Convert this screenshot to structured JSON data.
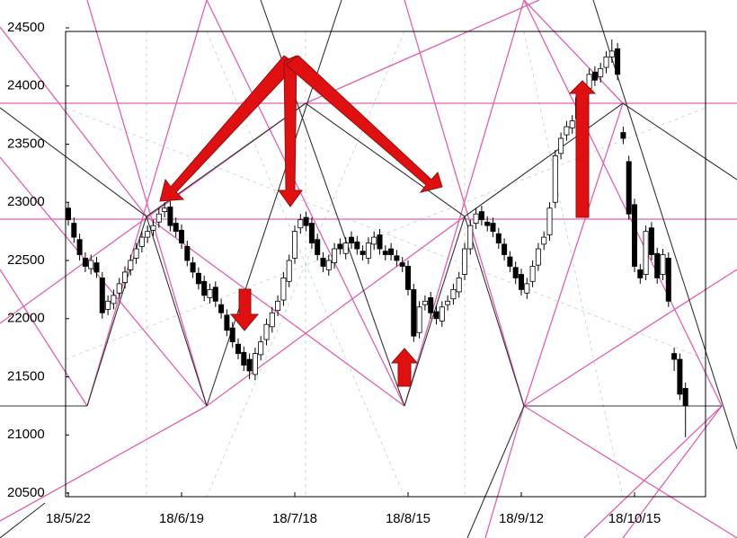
{
  "chart_data": {
    "type": "candlestick",
    "categories": [
      "18/5/22",
      null,
      null,
      null,
      null,
      null,
      null,
      null,
      null,
      null,
      null,
      null,
      null,
      null,
      null,
      null,
      null,
      null,
      null,
      null,
      "18/6/19",
      null,
      null,
      null,
      null,
      null,
      null,
      null,
      null,
      null,
      null,
      null,
      null,
      null,
      null,
      null,
      null,
      null,
      null,
      null,
      "18/7/18",
      null,
      null,
      null,
      null,
      null,
      null,
      null,
      null,
      null,
      null,
      null,
      null,
      null,
      null,
      null,
      null,
      null,
      null,
      null,
      "18/8/15",
      null,
      null,
      null,
      null,
      null,
      null,
      null,
      null,
      null,
      null,
      null,
      null,
      null,
      null,
      null,
      null,
      null,
      null,
      null,
      "18/9/12",
      null,
      null,
      null,
      null,
      null,
      null,
      null,
      null,
      null,
      null,
      null,
      null,
      null,
      null,
      null,
      null,
      null,
      null,
      null,
      "18/10/15",
      null,
      null,
      null,
      null,
      null,
      null,
      null,
      null,
      null
    ],
    "open": [
      22950,
      22820,
      22680,
      22520,
      22430,
      22480,
      22350,
      22080,
      22130,
      22220,
      22310,
      22420,
      22520,
      22620,
      22700,
      22760,
      22830,
      22920,
      22960,
      22820,
      22760,
      22620,
      22480,
      22390,
      22320,
      22180,
      22270,
      22120,
      22030,
      21920,
      21780,
      21710,
      21650,
      21520,
      21690,
      21820,
      21930,
      22070,
      22160,
      22320,
      22520,
      22780,
      22870,
      22820,
      22680,
      22520,
      22420,
      22480,
      22640,
      22560,
      22700,
      22660,
      22580,
      22520,
      22640,
      22720,
      22580,
      22600,
      22540,
      22480,
      22450,
      22250,
      21880,
      22120,
      22180,
      22060,
      21980,
      22120,
      22170,
      22230,
      22380,
      22600,
      22820,
      22920,
      22830,
      22820,
      22730,
      22640,
      22530,
      22440,
      22380,
      22220,
      22320,
      22460,
      22640,
      22720,
      23000,
      23420,
      23580,
      23640,
      23720,
      23920,
      23980,
      24120,
      24080,
      24160,
      24250,
      24320,
      23600,
      23350,
      22980,
      22420,
      22380,
      22780,
      22560,
      22380,
      22520,
      21700,
      21650,
      21400
    ],
    "high": [
      23000,
      22870,
      22730,
      22570,
      22550,
      22530,
      22400,
      22200,
      22250,
      22350,
      22450,
      22550,
      22650,
      22750,
      22800,
      22850,
      22950,
      23000,
      23010,
      22870,
      22810,
      22670,
      22530,
      22440,
      22370,
      22300,
      22320,
      22170,
      22080,
      21970,
      21830,
      21760,
      21700,
      21750,
      21850,
      22000,
      22100,
      22200,
      22400,
      22550,
      22800,
      22900,
      22920,
      22870,
      22730,
      22570,
      22550,
      22650,
      22690,
      22700,
      22750,
      22710,
      22630,
      22700,
      22750,
      22770,
      22630,
      22650,
      22590,
      22530,
      22500,
      22300,
      22150,
      22200,
      22230,
      22110,
      22150,
      22200,
      22300,
      22400,
      22650,
      22850,
      22950,
      22970,
      22880,
      22870,
      22780,
      22690,
      22580,
      22490,
      22430,
      22350,
      22500,
      22650,
      22750,
      23000,
      23450,
      23600,
      23700,
      23750,
      23950,
      24000,
      24150,
      24170,
      24200,
      24300,
      24400,
      24370,
      23650,
      23400,
      23030,
      22470,
      22800,
      22830,
      22610,
      22600,
      22570,
      21750,
      21700,
      21450
    ],
    "low": [
      22800,
      22650,
      22500,
      22400,
      22380,
      22350,
      22000,
      22030,
      22080,
      22170,
      22260,
      22370,
      22470,
      22570,
      22650,
      22710,
      22780,
      22870,
      22750,
      22700,
      22600,
      22450,
      22350,
      22250,
      22150,
      22130,
      22100,
      22000,
      21850,
      21750,
      21650,
      21550,
      21480,
      21470,
      21640,
      21770,
      21880,
      22020,
      22110,
      22270,
      22470,
      22730,
      22750,
      22600,
      22500,
      22400,
      22370,
      22430,
      22550,
      22510,
      22600,
      22550,
      22500,
      22470,
      22590,
      22550,
      22500,
      22500,
      22450,
      22400,
      22200,
      21800,
      21830,
      22070,
      22000,
      21950,
      21930,
      22070,
      22120,
      22180,
      22330,
      22550,
      22770,
      22800,
      22750,
      22700,
      22600,
      22500,
      22400,
      22300,
      22200,
      22170,
      22270,
      22410,
      22590,
      22670,
      22950,
      23370,
      23530,
      23590,
      23670,
      23870,
      23930,
      24000,
      24030,
      24110,
      24200,
      24050,
      23500,
      22850,
      22400,
      22300,
      22330,
      22500,
      22300,
      22330,
      22100,
      21550,
      21300,
      20980
    ],
    "close": [
      22850,
      22700,
      22550,
      22450,
      22500,
      22400,
      22050,
      22150,
      22200,
      22300,
      22400,
      22500,
      22600,
      22700,
      22750,
      22800,
      22900,
      22950,
      22800,
      22750,
      22650,
      22500,
      22400,
      22300,
      22200,
      22250,
      22150,
      22050,
      21900,
      21800,
      21700,
      21600,
      21550,
      21700,
      21800,
      21950,
      22050,
      22150,
      22350,
      22500,
      22750,
      22850,
      22800,
      22650,
      22550,
      22450,
      22500,
      22600,
      22600,
      22650,
      22650,
      22600,
      22550,
      22650,
      22700,
      22600,
      22550,
      22550,
      22500,
      22450,
      22250,
      21850,
      22100,
      22150,
      22050,
      22000,
      22100,
      22150,
      22250,
      22350,
      22600,
      22800,
      22900,
      22850,
      22800,
      22750,
      22650,
      22550,
      22450,
      22350,
      22250,
      22300,
      22450,
      22600,
      22700,
      22950,
      23400,
      23550,
      23650,
      23700,
      23900,
      23950,
      24100,
      24050,
      24150,
      24250,
      24300,
      24100,
      23550,
      22900,
      22450,
      22350,
      22750,
      22550,
      22350,
      22550,
      22150,
      21650,
      21350,
      21250
    ],
    "ylim": [
      20500,
      24500
    ],
    "yticks": [
      20500,
      21000,
      21500,
      22000,
      22500,
      23000,
      23500,
      24000,
      24500
    ],
    "up_color": "#ffffff",
    "down_color": "#000000"
  }
}
